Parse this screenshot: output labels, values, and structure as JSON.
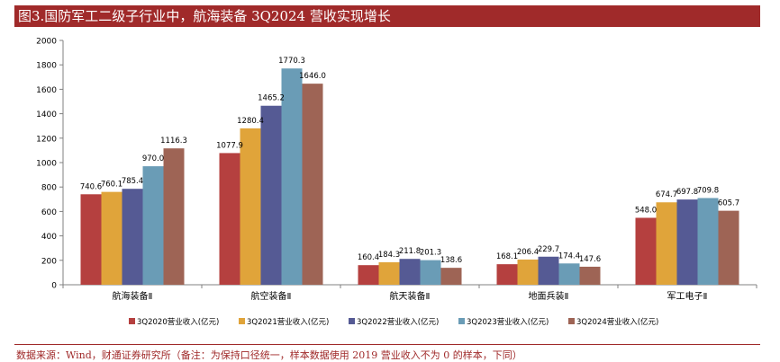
{
  "header": {
    "title": "图3.国防军工二级子行业中，航海装备 3Q2024 营收实现增长"
  },
  "footer": {
    "source": "数据来源：Wind，财通证券研究所（备注：为保持口径统一，样本数据使用 2019 营业收入不为 0 的样本，下同）"
  },
  "colors": {
    "title_bg": "#a02a2a",
    "series": [
      "#b5403f",
      "#e0a43a",
      "#555a94",
      "#6a9cb6",
      "#9e6455"
    ]
  },
  "chart_data": {
    "type": "bar",
    "categories": [
      "航海装备Ⅱ",
      "航空装备Ⅱ",
      "航天装备Ⅱ",
      "地面兵装Ⅱ",
      "军工电子Ⅱ"
    ],
    "series": [
      {
        "name": "3Q2020营业收入(亿元)",
        "values": [
          740.6,
          1077.9,
          160.4,
          168.1,
          548.0
        ]
      },
      {
        "name": "3Q2021营业收入(亿元)",
        "values": [
          760.1,
          1280.4,
          184.3,
          206.4,
          674.7
        ]
      },
      {
        "name": "3Q2022营业收入(亿元)",
        "values": [
          785.4,
          1465.2,
          211.8,
          229.7,
          697.8
        ]
      },
      {
        "name": "3Q2023营业收入(亿元)",
        "values": [
          970.0,
          1770.3,
          201.3,
          174.4,
          709.8
        ]
      },
      {
        "name": "3Q2024营业收入(亿元)",
        "values": [
          1116.3,
          1646.0,
          138.6,
          147.6,
          605.7
        ]
      }
    ],
    "value_labels": [
      [
        "740.6",
        "1077.9",
        "160.4",
        "168.1",
        "548.0"
      ],
      [
        "760.1",
        "1280.4",
        "184.3",
        "206.4",
        "674.7"
      ],
      [
        "785.4",
        "1465.2",
        "211.8",
        "229.7",
        "697.8"
      ],
      [
        "970.0",
        "1770.3",
        "201.3",
        "174.4",
        "709.8"
      ],
      [
        "1116.3",
        "1646.0",
        "138.6",
        "147.6",
        "605.7"
      ]
    ],
    "yticks": [
      "0",
      "200",
      "400",
      "600",
      "800",
      "1000",
      "1200",
      "1400",
      "1600",
      "1800",
      "2000"
    ],
    "ylim": [
      0,
      2000
    ],
    "legend": "bottom",
    "grid": false
  }
}
